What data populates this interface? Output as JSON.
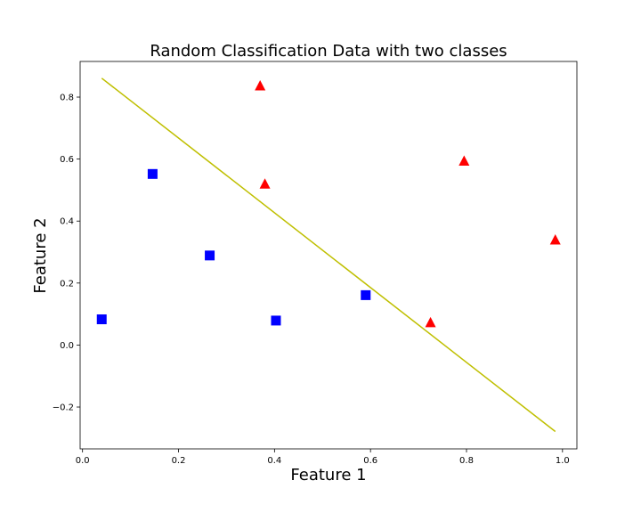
{
  "chart_data": {
    "type": "scatter",
    "title": "Random Classification Data with two classes",
    "xlabel": "Feature 1",
    "ylabel": "Feature 2",
    "xlim": [
      -0.005,
      1.03
    ],
    "ylim": [
      -0.335,
      0.915
    ],
    "xticks": [
      0.0,
      0.2,
      0.4,
      0.6,
      0.8,
      1.0
    ],
    "xtick_labels": [
      "0.0",
      "0.2",
      "0.4",
      "0.6",
      "0.8",
      "1.0"
    ],
    "yticks": [
      -0.2,
      0.0,
      0.2,
      0.4,
      0.6,
      0.8
    ],
    "ytick_labels": [
      "−0.2",
      "0.0",
      "0.2",
      "0.4",
      "0.6",
      "0.8"
    ],
    "grid": false,
    "series": [
      {
        "marker": "square",
        "color": "#0000ff",
        "points": [
          [
            0.04,
            0.083
          ],
          [
            0.146,
            0.552
          ],
          [
            0.265,
            0.289
          ],
          [
            0.403,
            0.079
          ],
          [
            0.59,
            0.161
          ]
        ]
      },
      {
        "marker": "triangle",
        "color": "#ff0000",
        "points": [
          [
            0.37,
            0.836
          ],
          [
            0.38,
            0.519
          ],
          [
            0.725,
            0.072
          ],
          [
            0.795,
            0.593
          ],
          [
            0.985,
            0.339
          ]
        ]
      }
    ],
    "line": {
      "color": "#bfbf00",
      "points": [
        [
          0.04,
          0.861
        ],
        [
          0.985,
          -0.279
        ]
      ]
    }
  }
}
